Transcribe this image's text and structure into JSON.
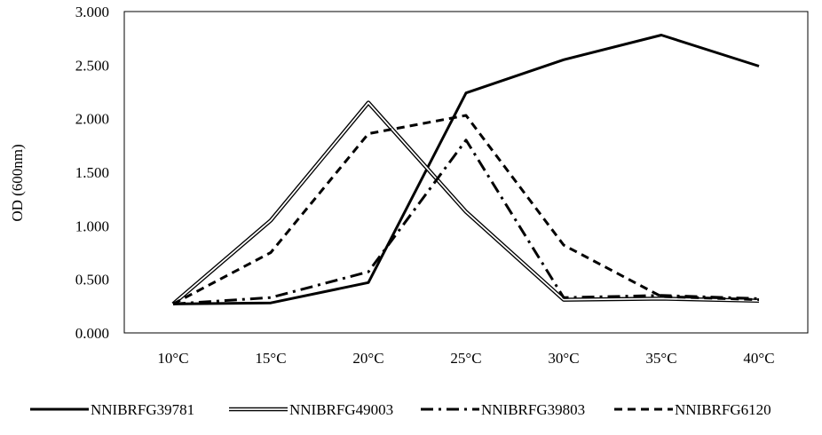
{
  "chart_data": {
    "type": "line",
    "categories": [
      "10°C",
      "15°C",
      "20°C",
      "25°C",
      "30°C",
      "35°C",
      "40°C"
    ],
    "ylabel": "OD (600nm)",
    "ylim": [
      0,
      3
    ],
    "yticks": [
      "0.000",
      "0.500",
      "1.000",
      "1.500",
      "2.000",
      "2.500",
      "3.000"
    ],
    "grid": false,
    "legend_position": "bottom",
    "series": [
      {
        "name": "NNIBRFG39781",
        "style": "solid",
        "values": [
          0.27,
          0.28,
          0.47,
          2.24,
          2.55,
          2.78,
          2.49
        ]
      },
      {
        "name": "NNIBRFG49003",
        "style": "double",
        "values": [
          0.27,
          1.05,
          2.15,
          1.13,
          0.31,
          0.32,
          0.3
        ]
      },
      {
        "name": "NNIBRFG39803",
        "style": "dashdot",
        "values": [
          0.27,
          0.33,
          0.57,
          1.8,
          0.33,
          0.35,
          0.32
        ]
      },
      {
        "name": "NNIBRFG6120",
        "style": "dashed",
        "values": [
          0.27,
          0.75,
          1.86,
          2.03,
          0.82,
          0.34,
          0.31
        ]
      }
    ]
  },
  "colors": {
    "line": "#000000",
    "background": "#ffffff"
  }
}
